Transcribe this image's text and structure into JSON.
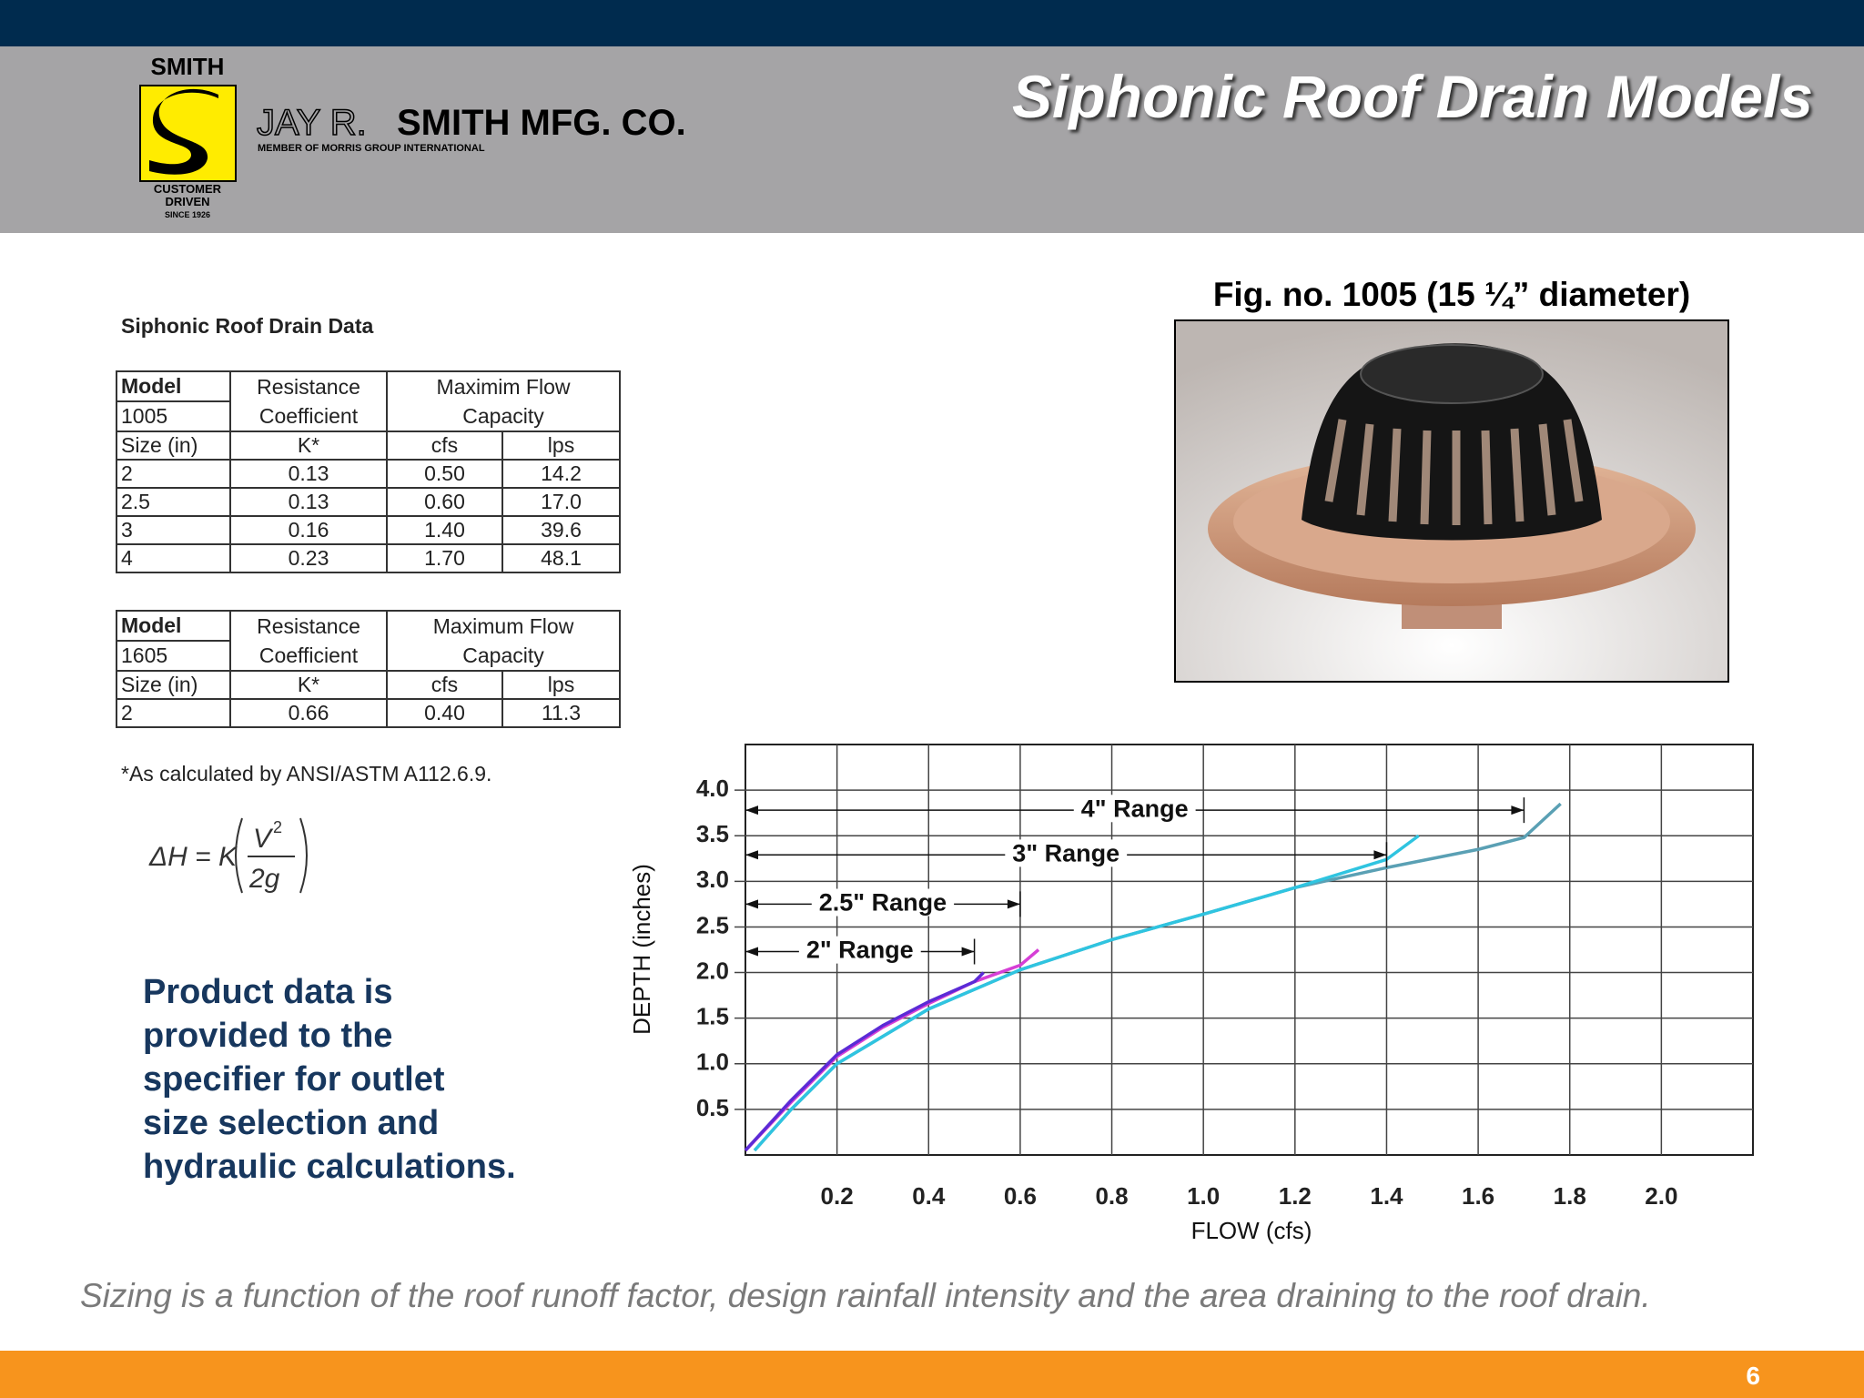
{
  "header": {
    "logo_top": "SMITH",
    "logo_bottom": [
      "CUSTOMER",
      "DRIVEN",
      "SINCE 1926"
    ],
    "company_light": "JAY R.",
    "company_bold": "SMITH MFG. CO.",
    "company_sub": "MEMBER OF MORRIS GROUP INTERNATIONAL",
    "title": "Siphonic Roof Drain Models"
  },
  "table_title": "Siphonic Roof Drain Data",
  "tables": [
    {
      "model_label": "Model",
      "model": "1005",
      "resistance": "Resistance Coefficient",
      "capacity": "Maximim Flow Capacity",
      "columns": [
        "Size (in)",
        "K*",
        "cfs",
        "lps"
      ],
      "rows": [
        [
          "2",
          "0.13",
          "0.50",
          "14.2"
        ],
        [
          "2.5",
          "0.13",
          "0.60",
          "17.0"
        ],
        [
          "3",
          "0.16",
          "1.40",
          "39.6"
        ],
        [
          "4",
          "0.23",
          "1.70",
          "48.1"
        ]
      ]
    },
    {
      "model_label": "Model",
      "model": "1605",
      "resistance": "Resistance Coefficient",
      "capacity": "Maximum Flow Capacity",
      "columns": [
        "Size (in)",
        "K*",
        "cfs",
        "lps"
      ],
      "rows": [
        [
          "2",
          "0.66",
          "0.40",
          "11.3"
        ]
      ]
    }
  ],
  "note": "*As calculated by ANSI/ASTM A112.6.9.",
  "formula": {
    "lhs": "ΔH = K",
    "numerator": "V",
    "exponent": "2",
    "denominator": "2g"
  },
  "figure_caption": "Fig. no. 1005 (15 ¼” diameter)",
  "callout": [
    "Product data is",
    "provided to the",
    "specifier for outlet",
    "size selection and",
    "hydraulic calculations."
  ],
  "bottom_text": "Sizing is a function of the roof runoff factor, design rainfall intensity and the area draining to the roof drain.",
  "page_number": "6",
  "chart_data": {
    "type": "line",
    "x_label": "FLOW (cfs)",
    "y_label": "DEPTH (inches)",
    "xlim": [
      0,
      2.2
    ],
    "ylim": [
      0,
      4.5
    ],
    "xticks": [
      0.2,
      0.4,
      0.6,
      0.8,
      {
        "value": 1.0,
        "label": "1.0"
      },
      1.2,
      1.4,
      1.6,
      1.8,
      {
        "value": 2.0,
        "label": "2.0"
      }
    ],
    "yticks": [
      0.5,
      {
        "value": 1.0,
        "label": "1.0"
      },
      1.5,
      {
        "value": 2.0,
        "label": "2.0"
      },
      2.5,
      {
        "value": 3.0,
        "label": "3.0"
      },
      3.5,
      {
        "value": 4.0,
        "label": "4.0"
      }
    ],
    "xgrid": [
      0.2,
      0.4,
      0.6,
      0.8,
      1.0,
      1.2,
      1.4,
      1.6,
      1.8,
      2.0
    ],
    "grid": true,
    "series": [
      {
        "color": "#5aa0b4",
        "x": [
          0.02,
          0.1,
          0.2,
          0.4,
          0.6,
          0.8,
          1.0,
          1.2,
          1.4,
          1.6,
          1.7,
          1.78
        ],
        "values": [
          0.05,
          0.5,
          1.0,
          1.6,
          2.03,
          2.36,
          2.64,
          2.93,
          3.15,
          3.35,
          3.48,
          3.85
        ]
      },
      {
        "color": "#2fc4e0",
        "x": [
          0.02,
          0.1,
          0.2,
          0.4,
          0.6,
          0.8,
          1.0,
          1.2,
          1.4,
          1.47
        ],
        "values": [
          0.05,
          0.5,
          1.0,
          1.6,
          2.03,
          2.36,
          2.64,
          2.93,
          3.24,
          3.5
        ]
      },
      {
        "color": "#d63fd6",
        "x": [
          0,
          0.1,
          0.2,
          0.3,
          0.4,
          0.5,
          0.6,
          0.64
        ],
        "values": [
          0.05,
          0.58,
          1.08,
          1.4,
          1.66,
          1.9,
          2.08,
          2.25
        ]
      },
      {
        "color": "#5b2bd6",
        "x": [
          0,
          0.1,
          0.2,
          0.3,
          0.4,
          0.5,
          0.52
        ],
        "values": [
          0.05,
          0.6,
          1.1,
          1.42,
          1.68,
          1.9,
          2.0
        ]
      }
    ],
    "annotations": [
      {
        "text": "4\" Range",
        "x_end": 1.7,
        "y": 3.78
      },
      {
        "text": "3\" Range",
        "x_end": 1.4,
        "y": 3.29
      },
      {
        "text": "2.5\" Range",
        "x_end": 0.6,
        "y": 2.75
      },
      {
        "text": "2\" Range",
        "x_end": 0.5,
        "y": 2.23
      }
    ]
  }
}
